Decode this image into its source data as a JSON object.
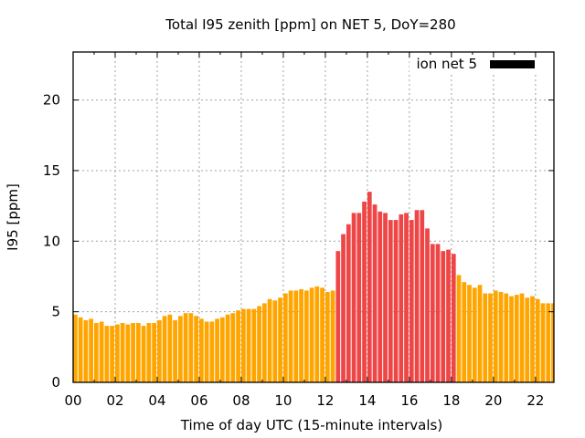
{
  "chart_data": {
    "type": "bar",
    "title": "Total I95 zenith [ppm] on NET 5, DoY=280",
    "xlabel": "Time of day UTC (15-minute intervals)",
    "ylabel": "I95 [ppm]",
    "xlim": [
      0,
      22.875
    ],
    "ylim": [
      0,
      23.4
    ],
    "x_ticks": [
      "00",
      "02",
      "04",
      "06",
      "08",
      "10",
      "12",
      "14",
      "16",
      "18",
      "20",
      "22"
    ],
    "y_ticks": [
      "0",
      "5",
      "10",
      "15",
      "20"
    ],
    "grid": true,
    "legend": {
      "position": "top-right",
      "entries": [
        {
          "label": "ion net 5",
          "color": "#000000"
        }
      ]
    },
    "interval_hours": 0.25,
    "colors": {
      "normal": "#FFA500",
      "highlight": "#EE4646"
    },
    "highlight_range": [
      50,
      72
    ],
    "series": [
      {
        "name": "ion net 5",
        "values": [
          4.8,
          4.6,
          4.4,
          4.5,
          4.2,
          4.3,
          4.0,
          4.0,
          4.1,
          4.2,
          4.1,
          4.2,
          4.2,
          4.0,
          4.2,
          4.2,
          4.4,
          4.7,
          4.8,
          4.4,
          4.7,
          4.9,
          4.9,
          4.7,
          4.5,
          4.3,
          4.3,
          4.5,
          4.6,
          4.8,
          4.9,
          5.1,
          5.2,
          5.2,
          5.2,
          5.4,
          5.6,
          5.9,
          5.8,
          6.0,
          6.3,
          6.5,
          6.5,
          6.6,
          6.5,
          6.7,
          6.8,
          6.7,
          6.4,
          6.5,
          9.3,
          10.5,
          11.2,
          12.0,
          12.0,
          12.8,
          13.5,
          12.6,
          12.1,
          12.0,
          11.5,
          11.5,
          11.9,
          12.0,
          11.5,
          12.2,
          12.2,
          10.9,
          9.8,
          9.8,
          9.3,
          9.4,
          9.1,
          7.6,
          7.1,
          6.9,
          6.7,
          6.9,
          6.3,
          6.3,
          6.5,
          6.4,
          6.3,
          6.1,
          6.2,
          6.3,
          6.0,
          6.1,
          5.9,
          5.6,
          5.6,
          5.6
        ]
      }
    ]
  }
}
